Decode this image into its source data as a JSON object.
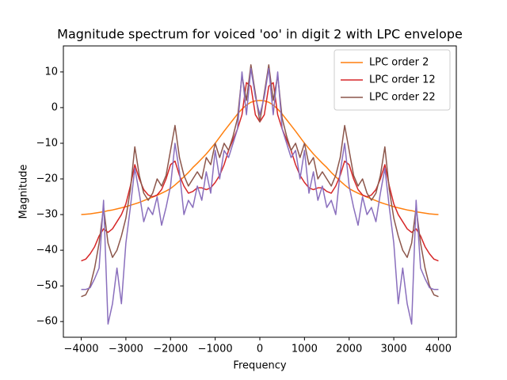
{
  "chart_data": {
    "type": "line",
    "title": "Magnitude spectrum for voiced 'oo' in digit 2 with LPC envelope",
    "xlabel": "Frequency",
    "ylabel": "Magnitude",
    "x": [
      -4000,
      -3900,
      -3800,
      -3700,
      -3600,
      -3500,
      -3400,
      -3300,
      -3200,
      -3100,
      -3000,
      -2900,
      -2800,
      -2700,
      -2600,
      -2500,
      -2400,
      -2300,
      -2200,
      -2100,
      -2000,
      -1900,
      -1800,
      -1700,
      -1600,
      -1500,
      -1400,
      -1300,
      -1200,
      -1100,
      -1000,
      -900,
      -800,
      -700,
      -600,
      -500,
      -400,
      -300,
      -200,
      -100,
      0,
      100,
      200,
      300,
      400,
      500,
      600,
      700,
      800,
      900,
      1000,
      1100,
      1200,
      1300,
      1400,
      1500,
      1600,
      1700,
      1800,
      1900,
      2000,
      2100,
      2200,
      2300,
      2400,
      2500,
      2600,
      2700,
      2800,
      2900,
      3000,
      3100,
      3200,
      3300,
      3400,
      3500,
      3600,
      3700,
      3800,
      3900,
      4000
    ],
    "series": [
      {
        "name": "LPC order 2",
        "color": "#ff7f0e",
        "values": [
          -30,
          -29.9,
          -29.8,
          -29.6,
          -29.4,
          -29.2,
          -28.9,
          -28.7,
          -28.4,
          -28.1,
          -27.8,
          -27.4,
          -27,
          -26.6,
          -26.1,
          -25.6,
          -25.1,
          -24.6,
          -24,
          -23.4,
          -22.7,
          -21.7,
          -20.6,
          -19.4,
          -18.2,
          -16.8,
          -15.6,
          -14.3,
          -13,
          -11.5,
          -10,
          -8.3,
          -6.6,
          -5,
          -3.4,
          -1.8,
          -0.4,
          0.7,
          1.5,
          1.9,
          2,
          1.9,
          1.5,
          0.7,
          -0.4,
          -1.8,
          -3.4,
          -5,
          -6.6,
          -8.3,
          -10,
          -11.5,
          -13,
          -14.3,
          -15.6,
          -16.8,
          -18.2,
          -19.4,
          -20.6,
          -21.7,
          -22.7,
          -23.4,
          -24,
          -24.6,
          -25.1,
          -25.6,
          -26.1,
          -26.6,
          -27,
          -27.4,
          -27.8,
          -28.1,
          -28.4,
          -28.7,
          -28.9,
          -29.2,
          -29.4,
          -29.6,
          -29.8,
          -29.9,
          -30
        ]
      },
      {
        "name": "LPC order 12",
        "color": "#d62728",
        "values": [
          -43,
          -42.5,
          -41,
          -39,
          -36,
          -34,
          -35,
          -34,
          -32,
          -30,
          -27,
          -22,
          -16,
          -20,
          -23,
          -24.5,
          -25,
          -24.5,
          -23,
          -20,
          -16,
          -15,
          -19,
          -22,
          -24,
          -23.5,
          -22.5,
          -22.5,
          -23,
          -22.5,
          -21,
          -19,
          -16,
          -12,
          -9,
          -6,
          -2,
          7,
          6,
          -2,
          -4,
          -2,
          6,
          7,
          -2,
          -6,
          -9,
          -12,
          -16,
          -19,
          -21,
          -22.5,
          -23,
          -22.5,
          -22.5,
          -23.5,
          -24,
          -22,
          -19,
          -15,
          -16,
          -20,
          -23,
          -24.5,
          -25,
          -24.5,
          -23,
          -20,
          -16,
          -22,
          -27,
          -30,
          -32,
          -34,
          -35,
          -34,
          -36,
          -39,
          -41,
          -42.5,
          -43
        ]
      },
      {
        "name": "LPC order 22",
        "color": "#8c564b",
        "values": [
          -53,
          -52.5,
          -50,
          -45,
          -38,
          -28,
          -38,
          -42,
          -40,
          -36,
          -31,
          -23,
          -11,
          -19,
          -24,
          -26,
          -24,
          -20,
          -22,
          -19,
          -12,
          -5,
          -14,
          -19,
          -22,
          -20,
          -18,
          -20,
          -14,
          -16,
          -10,
          -14,
          -10,
          -12,
          -8,
          -3,
          9,
          2,
          12,
          4,
          -4,
          4,
          12,
          2,
          9,
          -3,
          -8,
          -12,
          -10,
          -14,
          -10,
          -16,
          -14,
          -20,
          -18,
          -20,
          -22,
          -19,
          -14,
          -5,
          -12,
          -19,
          -22,
          -20,
          -24,
          -26,
          -24,
          -19,
          -11,
          -23,
          -31,
          -36,
          -40,
          -42,
          -38,
          -28,
          -38,
          -45,
          -50,
          -52.5,
          -53
        ]
      },
      {
        "color": "#8a6fbd",
        "values": [
          -51,
          -51,
          -50.5,
          -48,
          -45,
          -26,
          -60.7,
          -55,
          -45,
          -55,
          -38,
          -28,
          -17,
          -24,
          -32,
          -28,
          -30,
          -25,
          -33,
          -28,
          -22,
          -10,
          -18,
          -30,
          -26,
          -28,
          -22,
          -26,
          -18,
          -24,
          -12,
          -20,
          -12,
          -14,
          -10,
          -6,
          10,
          -2,
          11,
          3,
          -2,
          3,
          11,
          -2,
          10,
          -6,
          -10,
          -14,
          -12,
          -20,
          -12,
          -24,
          -18,
          -26,
          -22,
          -28,
          -26,
          -30,
          -18,
          -10,
          -22,
          -28,
          -33,
          -25,
          -30,
          -28,
          -32,
          -24,
          -17,
          -28,
          -38,
          -55,
          -45,
          -55,
          -60.7,
          -26,
          -45,
          -48,
          -50.5,
          -51,
          -51
        ]
      }
    ],
    "xlim": [
      -4400,
      4400
    ],
    "ylim": [
      -64.4,
      17.3
    ],
    "xticks": [
      {
        "value": -4000,
        "label": "−4000"
      },
      {
        "value": -3000,
        "label": "−3000"
      },
      {
        "value": -2000,
        "label": "−2000"
      },
      {
        "value": -1000,
        "label": "−1000"
      },
      0,
      1000,
      2000,
      3000,
      4000
    ],
    "yticks": [
      {
        "value": -60,
        "label": "−60"
      },
      {
        "value": -50,
        "label": "−50"
      },
      {
        "value": -40,
        "label": "−40"
      },
      {
        "value": -30,
        "label": "−30"
      },
      {
        "value": -20,
        "label": "−20"
      },
      {
        "value": -10,
        "label": "−10"
      },
      0,
      10
    ],
    "legend": "upper right"
  }
}
